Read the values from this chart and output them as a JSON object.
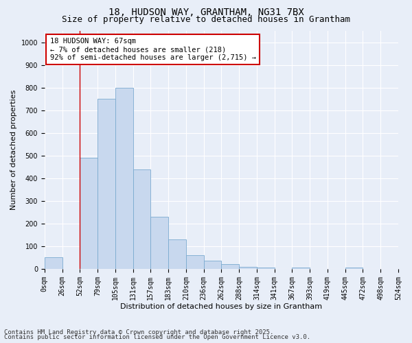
{
  "title_line1": "18, HUDSON WAY, GRANTHAM, NG31 7BX",
  "title_line2": "Size of property relative to detached houses in Grantham",
  "xlabel": "Distribution of detached houses by size in Grantham",
  "ylabel": "Number of detached properties",
  "bin_labels": [
    "0sqm",
    "26sqm",
    "52sqm",
    "79sqm",
    "105sqm",
    "131sqm",
    "157sqm",
    "183sqm",
    "210sqm",
    "236sqm",
    "262sqm",
    "288sqm",
    "314sqm",
    "341sqm",
    "367sqm",
    "393sqm",
    "419sqm",
    "445sqm",
    "472sqm",
    "498sqm",
    "524sqm"
  ],
  "bar_heights": [
    50,
    0,
    490,
    750,
    800,
    440,
    230,
    130,
    60,
    35,
    20,
    10,
    5,
    0,
    5,
    0,
    0,
    5,
    0,
    0
  ],
  "bar_color": "#c8d8ee",
  "bar_edge_color": "#7aaad0",
  "vline_x": 2,
  "vline_color": "#cc0000",
  "annotation_text": "18 HUDSON WAY: 67sqm\n← 7% of detached houses are smaller (218)\n92% of semi-detached houses are larger (2,715) →",
  "annotation_box_color": "#ffffff",
  "annotation_box_edge": "#cc0000",
  "ylim": [
    0,
    1050
  ],
  "yticks": [
    0,
    100,
    200,
    300,
    400,
    500,
    600,
    700,
    800,
    900,
    1000
  ],
  "background_color": "#e8eef8",
  "plot_bg_color": "#e8eef8",
  "grid_color": "#ffffff",
  "footer_line1": "Contains HM Land Registry data © Crown copyright and database right 2025.",
  "footer_line2": "Contains public sector information licensed under the Open Government Licence v3.0.",
  "title_fontsize": 10,
  "subtitle_fontsize": 9,
  "xlabel_fontsize": 8,
  "ylabel_fontsize": 8,
  "tick_fontsize": 7,
  "annotation_fontsize": 7.5,
  "footer_fontsize": 6.5
}
